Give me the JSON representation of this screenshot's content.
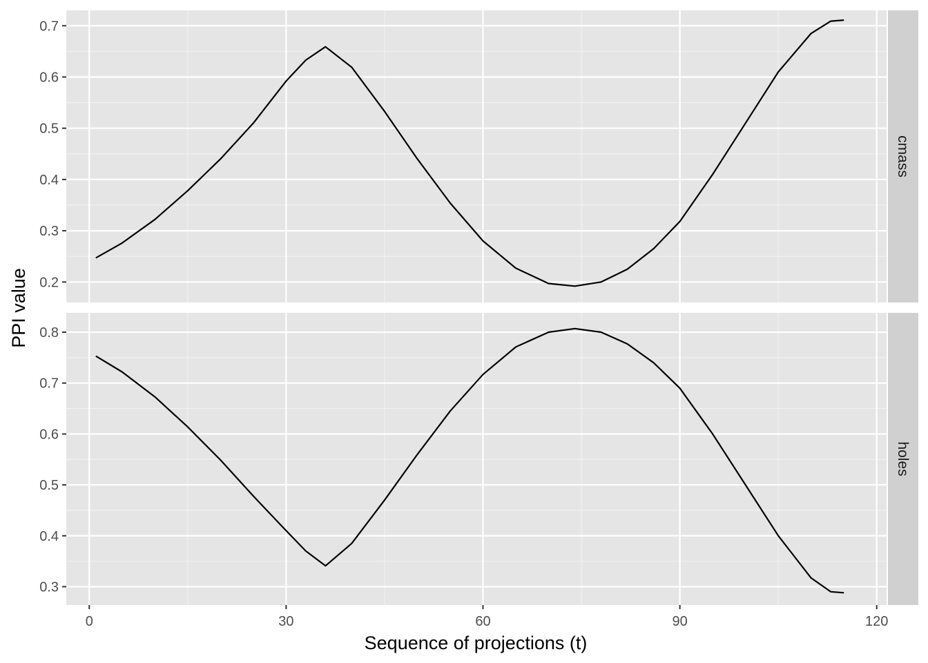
{
  "chart_data": {
    "type": "line",
    "xlabel": "Sequence of projections (t)",
    "ylabel": "PPI value",
    "xlim": [
      -3.5,
      121.5
    ],
    "x_ticks": [
      0,
      30,
      60,
      90,
      120
    ],
    "x_tick_labels": [
      "0",
      "30",
      "60",
      "90",
      "120"
    ],
    "grid": true,
    "panels": [
      {
        "strip_label": "cmass",
        "ylim": [
          0.16,
          0.73
        ],
        "y_ticks": [
          0.2,
          0.3,
          0.4,
          0.5,
          0.6,
          0.7
        ],
        "y_tick_labels": [
          "0.2",
          "0.3",
          "0.4",
          "0.5",
          "0.6",
          "0.7"
        ],
        "x": [
          1,
          5,
          10,
          15,
          20,
          25,
          30,
          33,
          36,
          40,
          45,
          50,
          55,
          60,
          65,
          70,
          74,
          78,
          82,
          86,
          90,
          95,
          100,
          105,
          110,
          113,
          115
        ],
        "y": [
          0.247,
          0.276,
          0.322,
          0.378,
          0.44,
          0.51,
          0.592,
          0.633,
          0.659,
          0.619,
          0.533,
          0.44,
          0.354,
          0.28,
          0.227,
          0.197,
          0.192,
          0.2,
          0.225,
          0.265,
          0.318,
          0.41,
          0.51,
          0.61,
          0.685,
          0.709,
          0.711
        ]
      },
      {
        "strip_label": "holes",
        "ylim": [
          0.264,
          0.838
        ],
        "y_ticks": [
          0.3,
          0.4,
          0.5,
          0.6,
          0.7,
          0.8
        ],
        "y_tick_labels": [
          "0.3",
          "0.4",
          "0.5",
          "0.6",
          "0.7",
          "0.8"
        ],
        "x": [
          1,
          5,
          10,
          15,
          20,
          25,
          30,
          33,
          36,
          40,
          45,
          50,
          55,
          60,
          65,
          70,
          74,
          78,
          82,
          86,
          90,
          95,
          100,
          105,
          110,
          113,
          115
        ],
        "y": [
          0.753,
          0.722,
          0.673,
          0.614,
          0.549,
          0.478,
          0.41,
          0.37,
          0.341,
          0.385,
          0.47,
          0.56,
          0.645,
          0.717,
          0.771,
          0.8,
          0.807,
          0.8,
          0.777,
          0.74,
          0.69,
          0.6,
          0.5,
          0.4,
          0.317,
          0.29,
          0.288
        ]
      }
    ]
  }
}
